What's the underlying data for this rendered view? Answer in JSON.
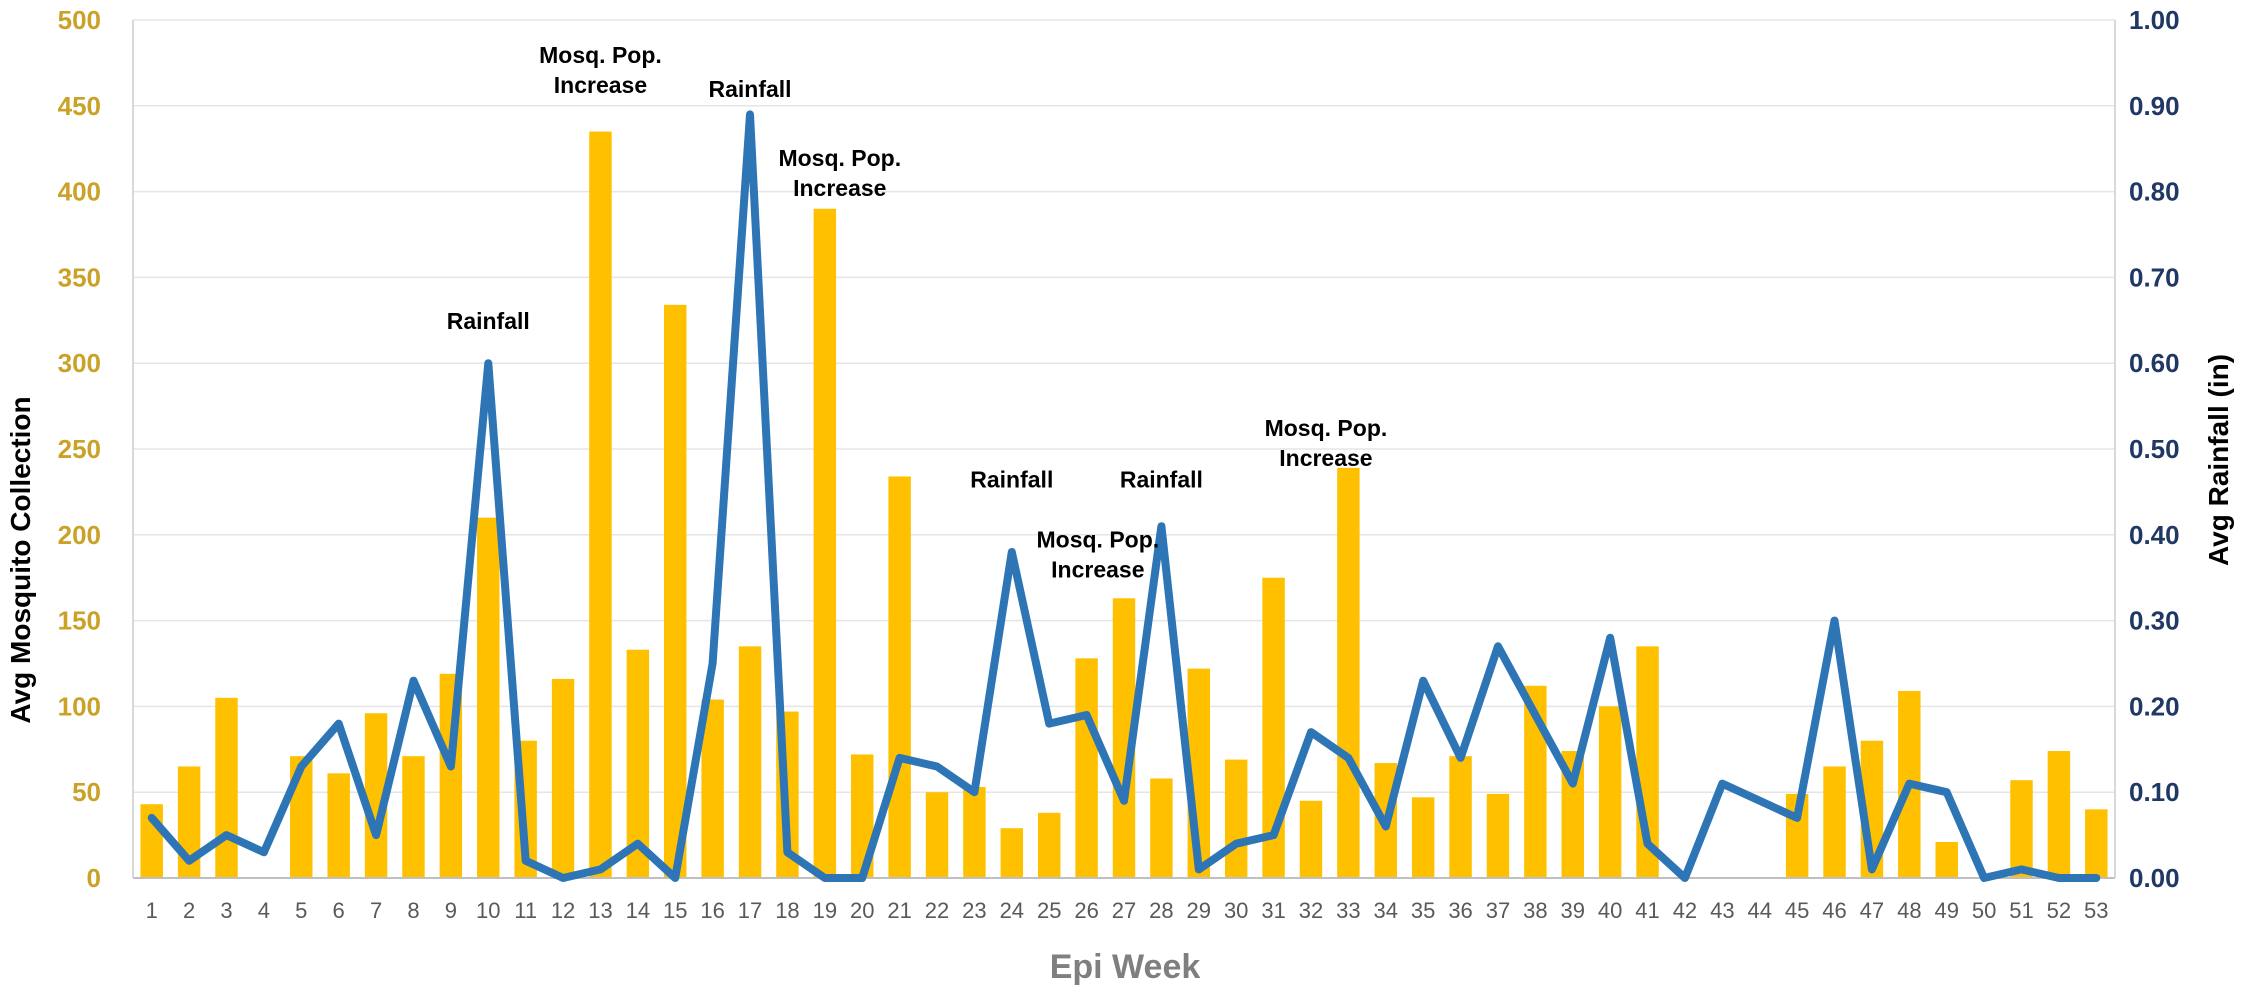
{
  "chart_data": {
    "type": "bar",
    "title": "",
    "xlabel": "Epi Week",
    "ylabel": "Avg Mosquito Collection",
    "y2label": "Avg Rainfall (in)",
    "ylim": [
      0,
      500
    ],
    "y2lim": [
      0,
      1.0
    ],
    "yticks": [
      "0",
      "50",
      "100",
      "150",
      "200",
      "250",
      "300",
      "350",
      "400",
      "450",
      "500"
    ],
    "y2ticks": [
      "0.00",
      "0.10",
      "0.20",
      "0.30",
      "0.40",
      "0.50",
      "0.60",
      "0.70",
      "0.80",
      "0.90",
      "1.00"
    ],
    "grid": true,
    "categories": [
      "1",
      "2",
      "3",
      "4",
      "5",
      "6",
      "7",
      "8",
      "9",
      "10",
      "11",
      "12",
      "13",
      "14",
      "15",
      "16",
      "17",
      "18",
      "19",
      "20",
      "21",
      "22",
      "23",
      "24",
      "25",
      "26",
      "27",
      "28",
      "29",
      "30",
      "31",
      "32",
      "33",
      "34",
      "35",
      "36",
      "37",
      "38",
      "39",
      "40",
      "41",
      "42",
      "43",
      "44",
      "45",
      "46",
      "47",
      "48",
      "49",
      "50",
      "51",
      "52",
      "53"
    ],
    "series": [
      {
        "type": "bar",
        "axis": "left",
        "color": "#FFC000",
        "values": [
          43,
          65,
          105,
          0,
          71,
          61,
          96,
          71,
          119,
          210,
          80,
          116,
          435,
          133,
          334,
          104,
          135,
          97,
          390,
          72,
          234,
          50,
          53,
          29,
          38,
          128,
          163,
          58,
          122,
          69,
          175,
          45,
          239,
          67,
          47,
          71,
          49,
          112,
          74,
          100,
          135,
          0,
          0,
          0,
          49,
          65,
          80,
          109,
          21,
          0,
          57,
          74,
          40
        ]
      },
      {
        "type": "line",
        "axis": "right",
        "color": "#2E75B6",
        "values": [
          0.07,
          0.02,
          0.05,
          0.03,
          0.13,
          0.18,
          0.05,
          0.23,
          0.13,
          0.6,
          0.02,
          0.0,
          0.01,
          0.04,
          0.0,
          0.25,
          0.89,
          0.03,
          0.0,
          0.0,
          0.14,
          0.13,
          0.1,
          0.38,
          0.18,
          0.19,
          0.09,
          0.41,
          0.01,
          0.04,
          0.05,
          0.17,
          0.14,
          0.06,
          0.23,
          0.14,
          0.27,
          0.19,
          0.11,
          0.28,
          0.04,
          0.0,
          0.11,
          0.09,
          0.07,
          0.3,
          0.01,
          0.11,
          0.1,
          0.0,
          0.01,
          0.0,
          0.0
        ]
      }
    ],
    "annotations": [
      {
        "lines": [
          "Rainfall"
        ],
        "week": 10,
        "value": 0.64,
        "axis": "right"
      },
      {
        "lines": [
          "Mosq. Pop.",
          "Increase"
        ],
        "week": 13,
        "value": 0.95,
        "axis": "right"
      },
      {
        "lines": [
          "Rainfall"
        ],
        "week": 17,
        "value": 0.91,
        "axis": "right"
      },
      {
        "lines": [
          "Mosq. Pop.",
          "Increase"
        ],
        "week": 19.4,
        "value": 0.83,
        "axis": "right"
      },
      {
        "lines": [
          "Rainfall"
        ],
        "week": 24,
        "value": 0.455,
        "axis": "right"
      },
      {
        "lines": [
          "Mosq. Pop.",
          "Increase"
        ],
        "week": 26.3,
        "value": 0.385,
        "axis": "right"
      },
      {
        "lines": [
          "Rainfall"
        ],
        "week": 28,
        "value": 0.455,
        "axis": "right"
      },
      {
        "lines": [
          "Mosq. Pop.",
          "Increase"
        ],
        "week": 32.4,
        "value": 0.515,
        "axis": "right"
      }
    ]
  }
}
